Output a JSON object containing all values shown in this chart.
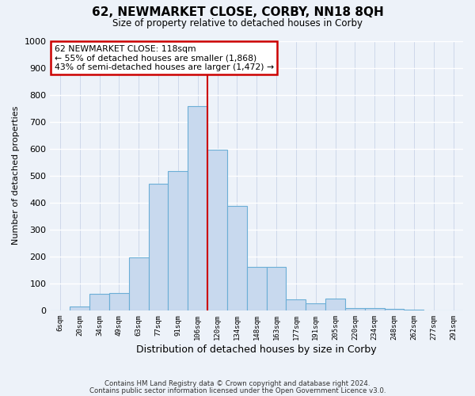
{
  "title": "62, NEWMARKET CLOSE, CORBY, NN18 8QH",
  "subtitle": "Size of property relative to detached houses in Corby",
  "xlabel": "Distribution of detached houses by size in Corby",
  "ylabel": "Number of detached properties",
  "bar_labels": [
    "6sqm",
    "20sqm",
    "34sqm",
    "49sqm",
    "63sqm",
    "77sqm",
    "91sqm",
    "106sqm",
    "120sqm",
    "134sqm",
    "148sqm",
    "163sqm",
    "177sqm",
    "191sqm",
    "205sqm",
    "220sqm",
    "234sqm",
    "248sqm",
    "262sqm",
    "277sqm",
    "291sqm"
  ],
  "bar_values": [
    0,
    13,
    62,
    65,
    195,
    470,
    518,
    757,
    597,
    388,
    160,
    160,
    42,
    25,
    45,
    8,
    7,
    4,
    1,
    0,
    0
  ],
  "bar_color": "#c8d9ee",
  "bar_edge_color": "#6baed6",
  "ylim": [
    0,
    1000
  ],
  "yticks": [
    0,
    100,
    200,
    300,
    400,
    500,
    600,
    700,
    800,
    900,
    1000
  ],
  "vline_x_index": 8,
  "vline_color": "#cc0000",
  "annotation_title": "62 NEWMARKET CLOSE: 118sqm",
  "annotation_line1": "← 55% of detached houses are smaller (1,868)",
  "annotation_line2": "43% of semi-detached houses are larger (1,472) →",
  "annotation_box_color": "#cc0000",
  "background_color": "#edf2f9",
  "grid_color": "#d0d8e8",
  "footer1": "Contains HM Land Registry data © Crown copyright and database right 2024.",
  "footer2": "Contains public sector information licensed under the Open Government Licence v3.0."
}
